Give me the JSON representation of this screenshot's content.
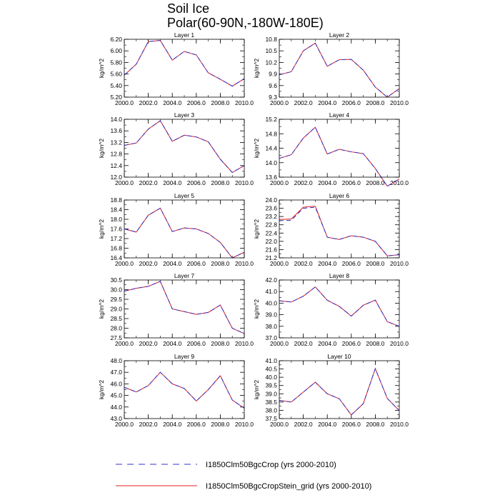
{
  "title": "Soil Ice",
  "subtitle": "Polar(60-90N,-180W-180E)",
  "legend": {
    "placement": "bottom",
    "items": [
      {
        "label": "I1850Clm50BgcCrop (yrs 2000-2010)",
        "color": "#3333cc",
        "style": "dashed"
      },
      {
        "label": "I1850Clm50BgcCropStein_grid (yrs 2000-2010)",
        "color": "#dd2222",
        "style": "solid"
      }
    ]
  },
  "chart_data": [
    {
      "type": "line",
      "title": "Layer 1",
      "ylabel": "kg/m^2",
      "x": [
        2000,
        2001,
        2002,
        2003,
        2004,
        2005,
        2006,
        2007,
        2008,
        2009,
        2010
      ],
      "xticks": [
        "2000.0",
        "2002.0",
        "2004.0",
        "2006.0",
        "2008.0",
        "2010.0"
      ],
      "ylim": [
        5.2,
        6.2
      ],
      "yticks": [
        "5.20",
        "5.40",
        "5.60",
        "5.80",
        "6.00",
        "6.20"
      ],
      "series": [
        {
          "name": "I1850Clm50BgcCrop (yrs 2000-2010)",
          "values": [
            5.58,
            5.77,
            6.16,
            6.18,
            5.84,
            5.99,
            5.93,
            5.62,
            5.51,
            5.39,
            5.52
          ]
        },
        {
          "name": "I1850Clm50BgcCropStein_grid (yrs 2000-2010)",
          "values": [
            5.58,
            5.77,
            6.16,
            6.18,
            5.84,
            5.99,
            5.93,
            5.62,
            5.51,
            5.39,
            5.52
          ]
        }
      ]
    },
    {
      "type": "line",
      "title": "Layer 2",
      "ylabel": "kg/m^2",
      "x": [
        2000,
        2001,
        2002,
        2003,
        2004,
        2005,
        2006,
        2007,
        2008,
        2009,
        2010
      ],
      "xticks": [
        "2000.0",
        "2002.0",
        "2004.0",
        "2006.0",
        "2008.0",
        "2010.0"
      ],
      "ylim": [
        9.3,
        10.8
      ],
      "yticks": [
        "9.3",
        "9.6",
        "9.9",
        "10.2",
        "10.5",
        "10.8"
      ],
      "series": [
        {
          "name": "I1850Clm50BgcCrop (yrs 2000-2010)",
          "values": [
            9.88,
            9.96,
            10.5,
            10.7,
            10.1,
            10.27,
            10.28,
            10.0,
            9.56,
            9.3,
            9.52
          ]
        },
        {
          "name": "I1850Clm50BgcCropStein_grid (yrs 2000-2010)",
          "values": [
            9.88,
            9.96,
            10.5,
            10.7,
            10.1,
            10.27,
            10.28,
            10.0,
            9.56,
            9.3,
            9.52
          ]
        }
      ]
    },
    {
      "type": "line",
      "title": "Layer 3",
      "ylabel": "kg/m^2",
      "x": [
        2000,
        2001,
        2002,
        2003,
        2004,
        2005,
        2006,
        2007,
        2008,
        2009,
        2010
      ],
      "xticks": [
        "2000.0",
        "2002.0",
        "2004.0",
        "2006.0",
        "2008.0",
        "2010.0"
      ],
      "ylim": [
        12.0,
        14.0
      ],
      "yticks": [
        "12.0",
        "12.4",
        "12.8",
        "13.2",
        "13.6",
        "14.0"
      ],
      "series": [
        {
          "name": "I1850Clm50BgcCrop (yrs 2000-2010)",
          "values": [
            13.1,
            13.18,
            13.66,
            13.95,
            13.24,
            13.45,
            13.39,
            13.22,
            12.62,
            12.16,
            12.4
          ]
        },
        {
          "name": "I1850Clm50BgcCropStein_grid (yrs 2000-2010)",
          "values": [
            13.1,
            13.18,
            13.66,
            13.95,
            13.24,
            13.45,
            13.39,
            13.22,
            12.62,
            12.16,
            12.4
          ]
        }
      ]
    },
    {
      "type": "line",
      "title": "Layer 4",
      "ylabel": "kg/m^2",
      "x": [
        2000,
        2001,
        2002,
        2003,
        2004,
        2005,
        2006,
        2007,
        2008,
        2009,
        2010
      ],
      "xticks": [
        "2000.0",
        "2002.0",
        "2004.0",
        "2006.0",
        "2008.0",
        "2010.0"
      ],
      "ylim": [
        13.6,
        15.2
      ],
      "yticks": [
        "13.6",
        "14.0",
        "14.4",
        "14.8",
        "15.2"
      ],
      "series": [
        {
          "name": "I1850Clm50BgcCrop (yrs 2000-2010)",
          "values": [
            14.12,
            14.22,
            14.68,
            14.98,
            14.24,
            14.37,
            14.3,
            14.25,
            13.84,
            13.35,
            13.55
          ]
        },
        {
          "name": "I1850Clm50BgcCropStein_grid (yrs 2000-2010)",
          "values": [
            14.12,
            14.22,
            14.68,
            14.98,
            14.24,
            14.37,
            14.3,
            14.25,
            13.84,
            13.35,
            13.55
          ]
        }
      ]
    },
    {
      "type": "line",
      "title": "Layer 5",
      "ylabel": "kg/m^2",
      "x": [
        2000,
        2001,
        2002,
        2003,
        2004,
        2005,
        2006,
        2007,
        2008,
        2009,
        2010
      ],
      "xticks": [
        "2000.0",
        "2002.0",
        "2004.0",
        "2006.0",
        "2008.0",
        "2010.0"
      ],
      "ylim": [
        16.4,
        18.8
      ],
      "yticks": [
        "16.4",
        "16.8",
        "17.2",
        "17.6",
        "18.0",
        "18.4",
        "18.8"
      ],
      "series": [
        {
          "name": "I1850Clm50BgcCrop (yrs 2000-2010)",
          "values": [
            17.6,
            17.47,
            18.17,
            18.46,
            17.49,
            17.64,
            17.6,
            17.41,
            17.04,
            16.4,
            16.63
          ]
        },
        {
          "name": "I1850Clm50BgcCropStein_grid (yrs 2000-2010)",
          "values": [
            17.6,
            17.47,
            18.17,
            18.46,
            17.49,
            17.64,
            17.6,
            17.41,
            17.04,
            16.4,
            16.63
          ]
        }
      ]
    },
    {
      "type": "line",
      "title": "Layer 6",
      "ylabel": "kg/m^2",
      "x": [
        2000,
        2001,
        2002,
        2003,
        2004,
        2005,
        2006,
        2007,
        2008,
        2009,
        2010
      ],
      "xticks": [
        "2000.0",
        "2002.0",
        "2004.0",
        "2006.0",
        "2008.0",
        "2010.0"
      ],
      "ylim": [
        21.2,
        24.0
      ],
      "yticks": [
        "21.2",
        "21.6",
        "22.0",
        "22.4",
        "22.8",
        "23.2",
        "23.6",
        "24.0"
      ],
      "series": [
        {
          "name": "I1850Clm50BgcCrop (yrs 2000-2010)",
          "values": [
            23.0,
            23.02,
            23.6,
            23.65,
            22.2,
            22.09,
            22.27,
            22.2,
            22.0,
            21.3,
            21.35
          ]
        },
        {
          "name": "I1850Clm50BgcCropStein_grid (yrs 2000-2010)",
          "values": [
            23.06,
            23.08,
            23.65,
            23.7,
            22.2,
            22.09,
            22.27,
            22.2,
            22.0,
            21.3,
            21.35
          ]
        }
      ]
    },
    {
      "type": "line",
      "title": "Layer 7",
      "ylabel": "kg/m^2",
      "x": [
        2000,
        2001,
        2002,
        2003,
        2004,
        2005,
        2006,
        2007,
        2008,
        2009,
        2010
      ],
      "xticks": [
        "2000.0",
        "2002.0",
        "2004.0",
        "2006.0",
        "2008.0",
        "2010.0"
      ],
      "ylim": [
        27.5,
        30.5
      ],
      "yticks": [
        "27.5",
        "28.0",
        "28.5",
        "29.0",
        "29.5",
        "30.0",
        "30.5"
      ],
      "series": [
        {
          "name": "I1850Clm50BgcCrop (yrs 2000-2010)",
          "values": [
            29.92,
            30.07,
            30.17,
            30.43,
            29.0,
            28.86,
            28.72,
            28.82,
            29.2,
            28.0,
            27.72
          ]
        },
        {
          "name": "I1850Clm50BgcCropStein_grid (yrs 2000-2010)",
          "values": [
            29.92,
            30.07,
            30.17,
            30.43,
            29.0,
            28.86,
            28.72,
            28.82,
            29.2,
            28.0,
            27.72
          ]
        }
      ]
    },
    {
      "type": "line",
      "title": "Layer 8",
      "ylabel": "kg/m^2",
      "x": [
        2000,
        2001,
        2002,
        2003,
        2004,
        2005,
        2006,
        2007,
        2008,
        2009,
        2010
      ],
      "xticks": [
        "2000.0",
        "2002.0",
        "2004.0",
        "2006.0",
        "2008.0",
        "2010.0"
      ],
      "ylim": [
        37.0,
        42.0
      ],
      "yticks": [
        "37.0",
        "38.0",
        "39.0",
        "40.0",
        "41.0",
        "42.0"
      ],
      "series": [
        {
          "name": "I1850Clm50BgcCrop (yrs 2000-2010)",
          "values": [
            40.2,
            40.1,
            40.6,
            41.4,
            40.25,
            39.72,
            38.88,
            39.82,
            40.26,
            38.4,
            38.0
          ]
        },
        {
          "name": "I1850Clm50BgcCropStein_grid (yrs 2000-2010)",
          "values": [
            40.2,
            40.1,
            40.6,
            41.4,
            40.25,
            39.72,
            38.88,
            39.82,
            40.26,
            38.4,
            38.0
          ]
        }
      ]
    },
    {
      "type": "line",
      "title": "Layer 9",
      "ylabel": "kg/m^2",
      "x": [
        2000,
        2001,
        2002,
        2003,
        2004,
        2005,
        2006,
        2007,
        2008,
        2009,
        2010
      ],
      "xticks": [
        "2000.0",
        "2002.0",
        "2004.0",
        "2006.0",
        "2008.0",
        "2010.0"
      ],
      "ylim": [
        43.0,
        48.0
      ],
      "yticks": [
        "43.0",
        "44.0",
        "45.0",
        "46.0",
        "47.0",
        "48.0"
      ],
      "series": [
        {
          "name": "I1850Clm50BgcCrop (yrs 2000-2010)",
          "values": [
            45.7,
            45.3,
            45.85,
            47.0,
            46.0,
            45.6,
            44.52,
            45.5,
            46.7,
            44.6,
            43.9
          ]
        },
        {
          "name": "I1850Clm50BgcCropStein_grid (yrs 2000-2010)",
          "values": [
            45.7,
            45.3,
            45.85,
            47.0,
            46.0,
            45.6,
            44.52,
            45.5,
            46.7,
            44.6,
            43.9
          ]
        }
      ]
    },
    {
      "type": "line",
      "title": "Layer 10",
      "ylabel": "kg/m^2",
      "x": [
        2000,
        2001,
        2002,
        2003,
        2004,
        2005,
        2006,
        2007,
        2008,
        2009,
        2010
      ],
      "xticks": [
        "2000.0",
        "2002.0",
        "2004.0",
        "2006.0",
        "2008.0",
        "2010.0"
      ],
      "ylim": [
        37.5,
        41.0
      ],
      "yticks": [
        "37.5",
        "38.0",
        "38.5",
        "39.0",
        "39.5",
        "40.0",
        "40.5",
        "41.0"
      ],
      "series": [
        {
          "name": "I1850Clm50BgcCrop (yrs 2000-2010)",
          "values": [
            38.6,
            38.5,
            39.1,
            39.7,
            39.0,
            38.7,
            37.72,
            38.4,
            40.52,
            38.72,
            37.98
          ]
        },
        {
          "name": "I1850Clm50BgcCropStein_grid (yrs 2000-2010)",
          "values": [
            38.6,
            38.5,
            39.1,
            39.7,
            39.0,
            38.7,
            37.72,
            38.4,
            40.52,
            38.72,
            37.98
          ]
        }
      ]
    }
  ]
}
